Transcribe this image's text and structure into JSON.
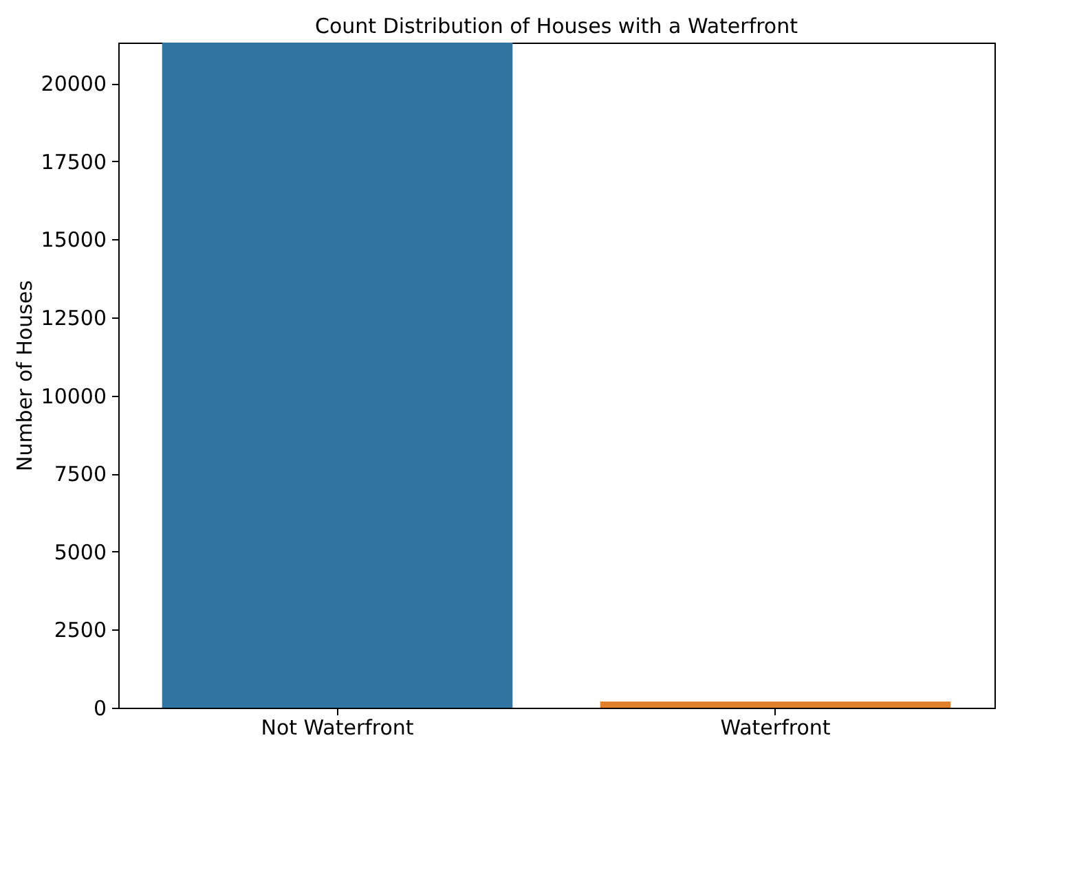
{
  "chart_data": {
    "type": "bar",
    "title": "Count Distribution of Houses with a Waterfront",
    "ylabel": "Number of Houses",
    "categories": [
      "Not Waterfront",
      "Waterfront"
    ],
    "values": [
      21300,
      200
    ],
    "colors": [
      "#3274a1",
      "#e1812c"
    ],
    "ylim": [
      0,
      21300
    ],
    "yticks": [
      0,
      2500,
      5000,
      7500,
      10000,
      12500,
      15000,
      17500,
      20000
    ],
    "grid": false,
    "legend": false
  }
}
